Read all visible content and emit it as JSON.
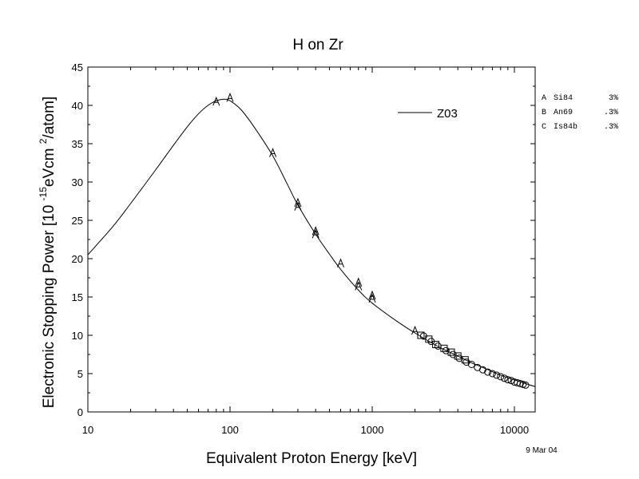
{
  "chart_data": {
    "type": "scatter",
    "title": "H on Zr",
    "xlabel": "Equivalent Proton Energy [keV]",
    "ylabel": {
      "prefix": "Electronic Stopping Power [10 ",
      "exp": "-15",
      "mid": "eVcm ",
      "sup2": "2",
      "suffix": "/atom]"
    },
    "x_scale": "log",
    "xlim": [
      10,
      14000
    ],
    "ylim": [
      0,
      45
    ],
    "x_ticks": [
      10,
      100,
      1000,
      10000
    ],
    "y_ticks": [
      0,
      5,
      10,
      15,
      20,
      25,
      30,
      35,
      40,
      45
    ],
    "grid": false,
    "legend": {
      "position": "top-right",
      "label": "Z03"
    },
    "date_label": "9 Mar 04",
    "curve": {
      "name": "Z03",
      "x": [
        10,
        15,
        20,
        30,
        40,
        50,
        60,
        70,
        80,
        90,
        100,
        120,
        150,
        200,
        250,
        300,
        400,
        500,
        600,
        800,
        1000,
        1500,
        2000,
        3000,
        4000,
        5000,
        6000,
        8000,
        10000,
        12000,
        14000
      ],
      "y": [
        20.5,
        24.2,
        27.2,
        31.6,
        34.8,
        37.2,
        38.9,
        40.0,
        40.6,
        40.8,
        40.6,
        39.4,
        37.0,
        33.4,
        29.9,
        27.0,
        23.2,
        20.6,
        18.6,
        15.9,
        14.2,
        11.8,
        10.3,
        8.4,
        7.3,
        6.4,
        5.8,
        4.8,
        4.2,
        3.7,
        3.3
      ]
    },
    "series": [
      {
        "symbol": "A",
        "name": "Si84",
        "err": "3%",
        "x": [
          80,
          100,
          200,
          300,
          300,
          400,
          400,
          600,
          800,
          800,
          1000,
          1000,
          2000
        ],
        "y": [
          40.5,
          41.0,
          33.8,
          27.3,
          26.8,
          23.6,
          23.2,
          19.4,
          16.9,
          16.4,
          15.2,
          14.8,
          10.6
        ]
      },
      {
        "symbol": "B",
        "name": "An69",
        "err": ".3%",
        "x": [
          2200,
          2500,
          2800,
          3200,
          3600,
          4000,
          4500
        ],
        "y": [
          10.0,
          9.5,
          8.8,
          8.3,
          7.8,
          7.3,
          6.8
        ]
      },
      {
        "symbol": "C",
        "name": "Is84b",
        "err": ".3%",
        "x": [
          2300,
          2600,
          2900,
          3300,
          3700,
          4100,
          4600,
          5000,
          5500,
          6000,
          6500,
          7000,
          7500,
          8000,
          8500,
          9000,
          9500,
          10000,
          10500,
          11000,
          11500,
          12000
        ],
        "y": [
          9.9,
          9.2,
          8.6,
          8.0,
          7.5,
          7.0,
          6.5,
          6.2,
          5.8,
          5.5,
          5.2,
          5.0,
          4.8,
          4.6,
          4.4,
          4.2,
          4.1,
          3.9,
          3.8,
          3.7,
          3.6,
          3.5
        ]
      }
    ]
  }
}
